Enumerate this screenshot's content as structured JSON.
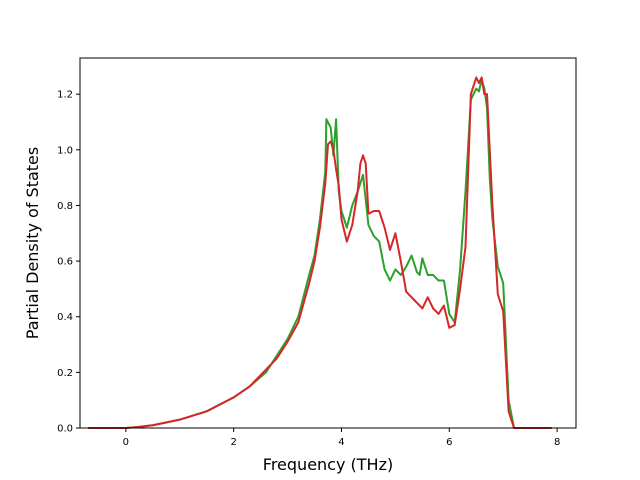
{
  "chart_data": {
    "type": "line",
    "title": "",
    "xlabel": "Frequency (THz)",
    "ylabel": "Partial Density of States",
    "xlim": [
      -0.85,
      8.35
    ],
    "ylim": [
      0.0,
      1.33
    ],
    "xticks": [
      0,
      2,
      4,
      6,
      8
    ],
    "xtick_labels": [
      "0",
      "2",
      "4",
      "6",
      "8"
    ],
    "yticks": [
      0.0,
      0.2,
      0.4,
      0.6,
      0.8,
      1.0,
      1.2
    ],
    "ytick_labels": [
      "0.0",
      "0.2",
      "0.4",
      "0.6",
      "0.8",
      "1.0",
      "1.2"
    ],
    "grid": false,
    "series": [
      {
        "color": "#2ca02c",
        "x": [
          -0.7,
          0.0,
          0.2,
          0.5,
          1.0,
          1.5,
          2.0,
          2.3,
          2.6,
          2.8,
          3.0,
          3.2,
          3.4,
          3.5,
          3.6,
          3.7,
          3.72,
          3.8,
          3.85,
          3.9,
          3.95,
          4.0,
          4.1,
          4.2,
          4.3,
          4.4,
          4.5,
          4.6,
          4.7,
          4.8,
          4.9,
          5.0,
          5.1,
          5.2,
          5.3,
          5.4,
          5.45,
          5.5,
          5.6,
          5.7,
          5.8,
          5.9,
          6.0,
          6.1,
          6.2,
          6.3,
          6.4,
          6.5,
          6.55,
          6.6,
          6.65,
          6.7,
          6.75,
          6.8,
          6.9,
          7.0,
          7.1,
          7.2,
          7.3,
          7.9
        ],
        "y": [
          0.0,
          0.0,
          0.003,
          0.01,
          0.03,
          0.06,
          0.11,
          0.15,
          0.2,
          0.26,
          0.32,
          0.4,
          0.55,
          0.62,
          0.75,
          0.92,
          1.11,
          1.08,
          0.98,
          1.11,
          0.85,
          0.78,
          0.72,
          0.8,
          0.85,
          0.91,
          0.73,
          0.69,
          0.67,
          0.57,
          0.53,
          0.57,
          0.55,
          0.58,
          0.62,
          0.56,
          0.55,
          0.61,
          0.55,
          0.55,
          0.53,
          0.53,
          0.41,
          0.38,
          0.57,
          0.85,
          1.18,
          1.22,
          1.21,
          1.25,
          1.22,
          1.15,
          0.9,
          0.75,
          0.58,
          0.52,
          0.1,
          0.0,
          0.0,
          0.0
        ]
      },
      {
        "color": "#d62728",
        "x": [
          -0.7,
          0.0,
          0.2,
          0.5,
          1.0,
          1.5,
          2.0,
          2.3,
          2.5,
          2.6,
          2.8,
          3.0,
          3.2,
          3.4,
          3.5,
          3.6,
          3.7,
          3.75,
          3.8,
          3.85,
          3.9,
          3.95,
          4.0,
          4.1,
          4.2,
          4.3,
          4.35,
          4.4,
          4.45,
          4.5,
          4.6,
          4.7,
          4.8,
          4.9,
          5.0,
          5.1,
          5.2,
          5.3,
          5.4,
          5.5,
          5.6,
          5.7,
          5.8,
          5.9,
          6.0,
          6.1,
          6.2,
          6.3,
          6.4,
          6.5,
          6.55,
          6.6,
          6.65,
          6.7,
          6.75,
          6.8,
          6.9,
          7.0,
          7.1,
          7.2,
          7.9
        ],
        "y": [
          0.0,
          0.0,
          0.003,
          0.01,
          0.03,
          0.06,
          0.11,
          0.15,
          0.19,
          0.21,
          0.25,
          0.31,
          0.38,
          0.52,
          0.6,
          0.72,
          0.88,
          1.02,
          1.03,
          1.0,
          0.93,
          0.87,
          0.75,
          0.67,
          0.73,
          0.85,
          0.95,
          0.98,
          0.95,
          0.77,
          0.78,
          0.78,
          0.72,
          0.64,
          0.7,
          0.6,
          0.49,
          0.47,
          0.45,
          0.43,
          0.47,
          0.43,
          0.41,
          0.44,
          0.36,
          0.37,
          0.5,
          0.65,
          1.2,
          1.26,
          1.24,
          1.26,
          1.2,
          1.2,
          1.0,
          0.8,
          0.48,
          0.42,
          0.06,
          0.0,
          0.0
        ]
      }
    ]
  }
}
